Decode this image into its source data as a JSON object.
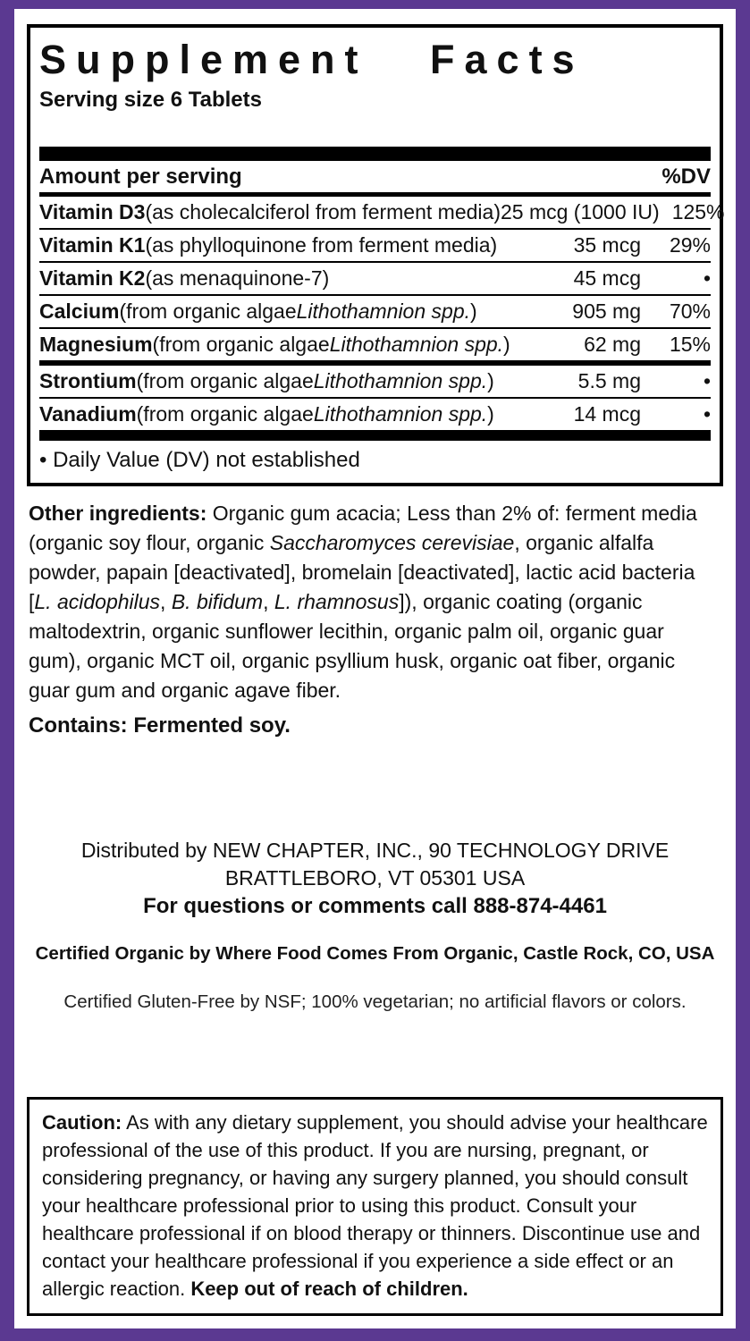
{
  "colors": {
    "accent_purple": "#5b3991",
    "rule_black": "#000000"
  },
  "panel": {
    "title": "Supplement Facts",
    "serving_size": "Serving size 6 Tablets",
    "header": {
      "amount": "Amount per serving",
      "dv": "%DV"
    },
    "rows": [
      {
        "name": "Vitamin D3",
        "desc_pre": " (as cholecalciferol from ferment media)",
        "desc_italic": "",
        "desc_post": "",
        "amount": "25 mcg (1000 IU)",
        "dv": "125%"
      },
      {
        "name": "Vitamin K1",
        "desc_pre": " (as phylloquinone from ferment media)",
        "desc_italic": "",
        "desc_post": "",
        "amount": "35 mcg",
        "dv": "29%"
      },
      {
        "name": "Vitamin K2",
        "desc_pre": " (as menaquinone-7)",
        "desc_italic": "",
        "desc_post": "",
        "amount": "45 mcg",
        "dv": "•"
      },
      {
        "name": "Calcium",
        "desc_pre": " (from organic algae ",
        "desc_italic": "Lithothamnion spp.",
        "desc_post": ")",
        "amount": "905 mg",
        "dv": "70%"
      },
      {
        "name": "Magnesium",
        "desc_pre": " (from organic algae ",
        "desc_italic": "Lithothamnion spp.",
        "desc_post": ")",
        "amount": "62 mg",
        "dv": "15%"
      },
      {
        "name": "Strontium",
        "desc_pre": " (from organic algae ",
        "desc_italic": "Lithothamnion spp.",
        "desc_post": ")",
        "amount": "5.5 mg",
        "dv": "•"
      },
      {
        "name": "Vanadium",
        "desc_pre": " (from organic algae ",
        "desc_italic": "Lithothamnion spp.",
        "desc_post": ")",
        "amount": "14 mcg",
        "dv": "•"
      }
    ],
    "footnote": "• Daily Value (DV) not established"
  },
  "other_ingredients": {
    "label": "Other ingredients:",
    "t1": " Organic gum acacia; Less than 2% of: ferment media (organic soy flour, organic ",
    "i1": "Saccharomyces cerevisiae",
    "t2": ", organic alfalfa powder, papain [deactivated], bromelain [deactivated], lactic acid bacteria [",
    "i2": "L. acidophilus",
    "t3": ", ",
    "i3": "B. bifidum",
    "t4": ", ",
    "i4": "L. rhamnosus",
    "t5": "]), organic coating (organic maltodextrin, organic sunflower lecithin, organic palm oil, organic guar gum), organic MCT oil, organic psyllium husk, organic oat fiber, organic guar gum and organic agave fiber."
  },
  "contains": "Contains: Fermented soy.",
  "distribution": {
    "line1": "Distributed by NEW CHAPTER, INC., 90 TECHNOLOGY DRIVE",
    "line2": "BRATTLEBORO, VT 05301 USA",
    "line3": "For questions or comments call 888-874-4461"
  },
  "certifications": {
    "organic": "Certified Organic by Where Food Comes From Organic, Castle Rock, CO, USA",
    "gluten_free": "Certified Gluten-Free by NSF; 100% vegetarian; no artificial flavors or colors."
  },
  "caution": {
    "label": "Caution:",
    "body": " As with any dietary supplement, you should advise your healthcare professional of the use of this product. If you are nursing, pregnant, or considering pregnancy, or having any surgery planned, you should consult your healthcare professional prior to using this product. Consult your healthcare professional if on blood therapy or thinners. Discontinue use and contact your healthcare professional if you experience a side effect or an allergic reaction. ",
    "emphasis": "Keep out of reach of children."
  }
}
